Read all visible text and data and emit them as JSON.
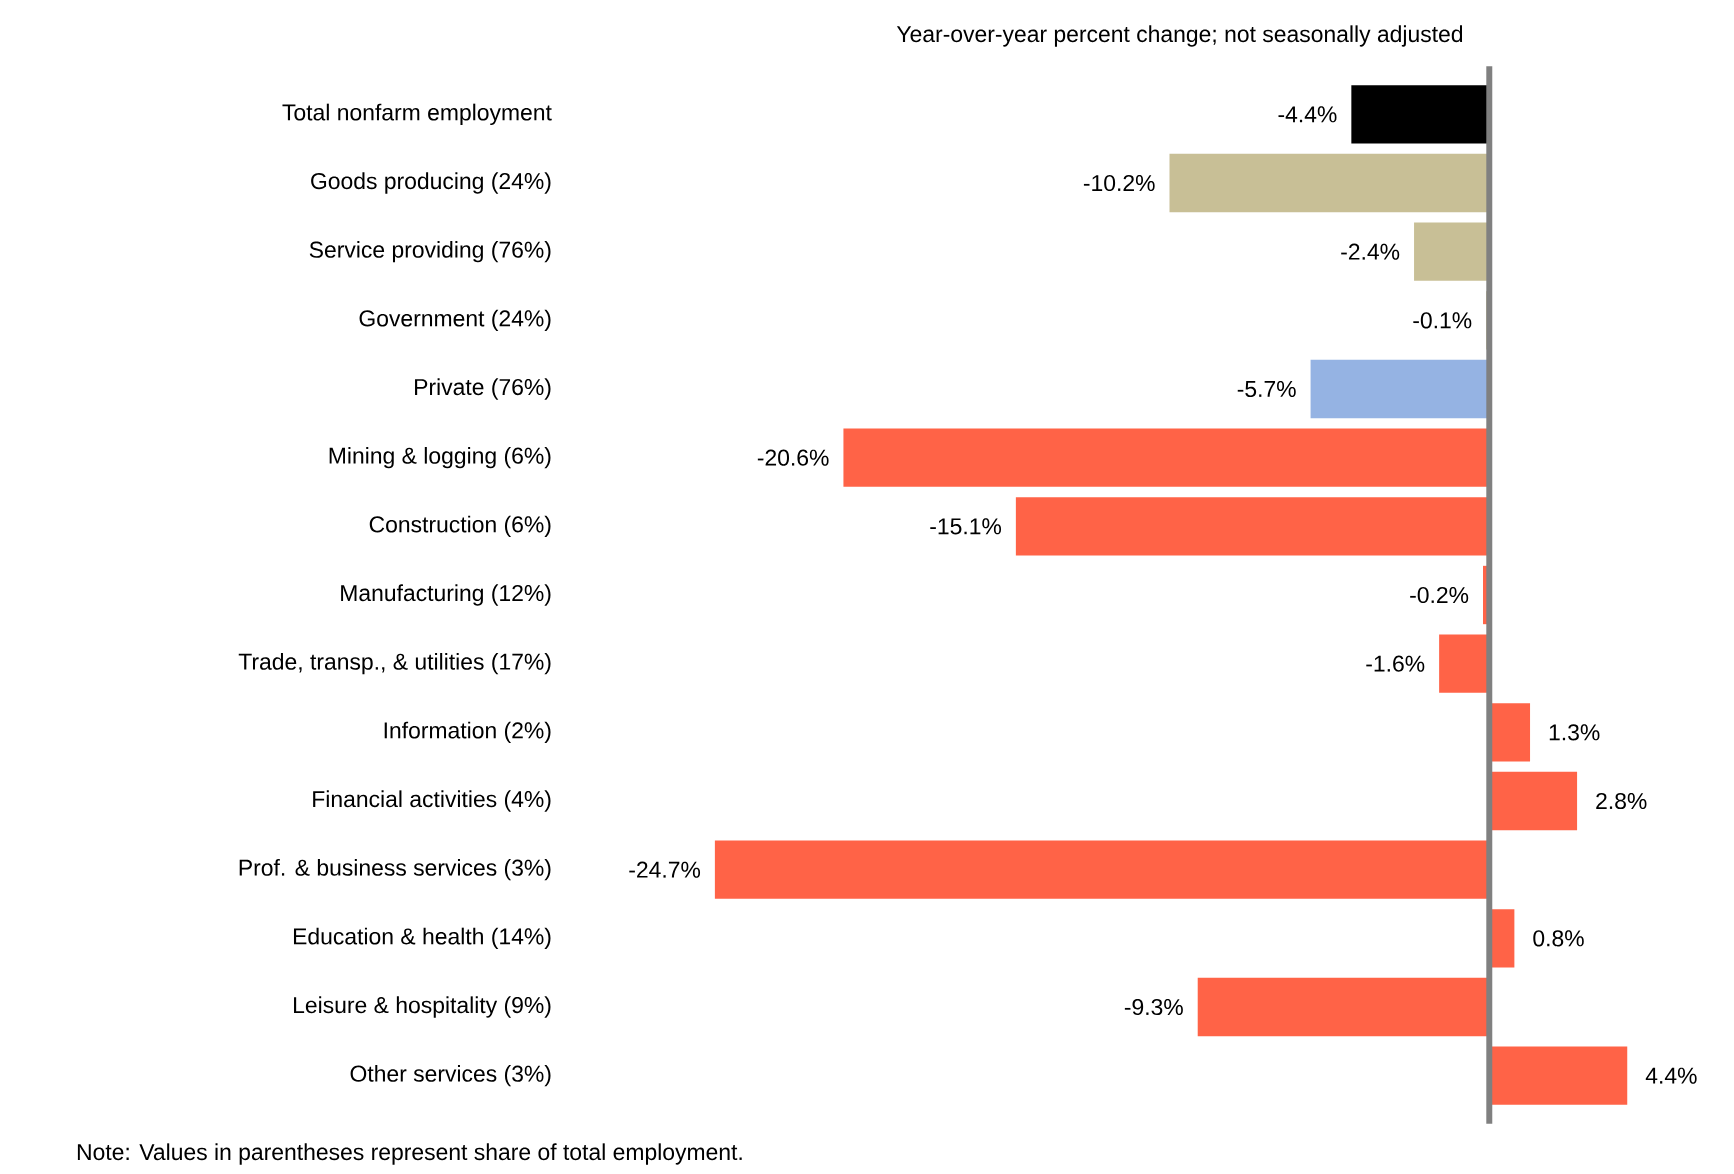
{
  "chart_data": {
    "type": "bar",
    "orientation": "horizontal",
    "title": "Year-over-year percent change; not seasonally adjusted",
    "categories": [
      "Total nonfarm employment",
      "Goods producing (24%)",
      "Service providing (76%)",
      "Government (24%)",
      "Private (76%)",
      "Mining & logging (6%)",
      "Construction (6%)",
      "Manufacturing (12%)",
      "Trade, transp., & utilities (17%)",
      "Information (2%)",
      "Financial activities (4%)",
      "Prof. & business services (3%)",
      "Education & health (14%)",
      "Leisure & hospitality (9%)",
      "Other services (3%)"
    ],
    "values": [
      -4.4,
      -10.2,
      -2.4,
      -0.1,
      -5.7,
      -20.6,
      -15.1,
      -0.2,
      -1.6,
      1.3,
      2.8,
      -24.7,
      0.8,
      -9.3,
      4.4
    ],
    "value_labels": [
      "-4.4%",
      "-10.2%",
      "-2.4%",
      "-0.1%",
      "-5.7%",
      "-20.6%",
      "-15.1%",
      "-0.2%",
      "-1.6%",
      "1.3%",
      "2.8%",
      "-24.7%",
      "0.8%",
      "-9.3%",
      "4.4%"
    ],
    "colors": [
      "#000000",
      "#c8bf96",
      "#c8bf96",
      "#c8bf96",
      "#95b3e3",
      "#ff6347",
      "#ff6347",
      "#ff6347",
      "#ff6347",
      "#ff6347",
      "#ff6347",
      "#ff6347",
      "#ff6347",
      "#ff6347",
      "#ff6347"
    ],
    "tick_labels": "y",
    "annotations": [
      "Note: Values in parentheses represent share of total employment."
    ]
  }
}
